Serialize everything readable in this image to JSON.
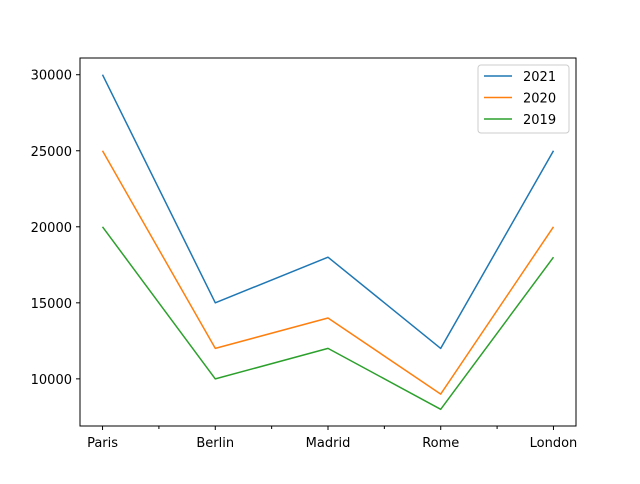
{
  "chart_data": {
    "type": "line",
    "categories": [
      "Paris",
      "Berlin",
      "Madrid",
      "Rome",
      "London"
    ],
    "series": [
      {
        "name": "2021",
        "color": "#1f77b4",
        "values": [
          30000,
          15000,
          18000,
          12000,
          25000
        ]
      },
      {
        "name": "2020",
        "color": "#ff7f0e",
        "values": [
          25000,
          12000,
          14000,
          9000,
          20000
        ]
      },
      {
        "name": "2019",
        "color": "#2ca02c",
        "values": [
          20000,
          10000,
          12000,
          8000,
          18000
        ]
      }
    ],
    "title": "",
    "xlabel": "",
    "ylabel": "",
    "ylim": [
      6900,
      31100
    ],
    "yticks": [
      10000,
      15000,
      20000,
      25000,
      30000
    ],
    "grid": false,
    "legend_position": "top-right"
  }
}
